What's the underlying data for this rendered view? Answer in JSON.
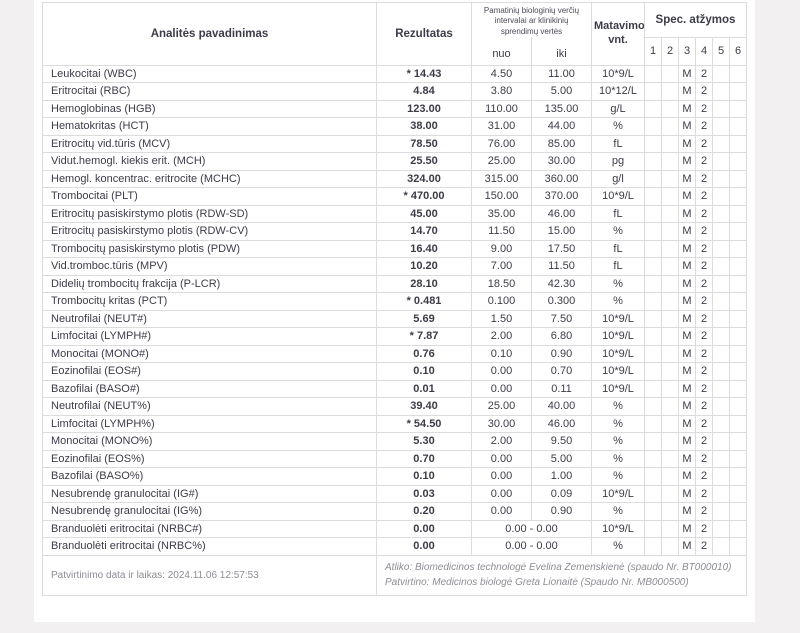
{
  "colors": {
    "page_background": "#f2f0f0",
    "panel_background": "#ffffff",
    "table_border": "#dcdcdc",
    "text": "#3c3c49",
    "muted_text": "#8d8d94"
  },
  "table": {
    "headers": {
      "analyte": "Analitės pavadinimas",
      "result": "Rezultatas",
      "reference": "Pamatinių biologinių verčių intervalai ar klinikinių sprendimų vertės",
      "from": "nuo",
      "to": "iki",
      "unit": "Matavimo vnt.",
      "spec": "Spec. atžymos",
      "spec_cols": [
        "1",
        "2",
        "3",
        "4",
        "5",
        "6"
      ]
    },
    "rows": [
      {
        "name": "Leukocitai (WBC)",
        "result": "* 14.43",
        "from": "4.50",
        "to": "11.00",
        "unit": "10*9/L",
        "spec": [
          "",
          "",
          "M",
          "2",
          "",
          ""
        ]
      },
      {
        "name": "Eritrocitai (RBC)",
        "result": "4.84",
        "from": "3.80",
        "to": "5.00",
        "unit": "10*12/L",
        "spec": [
          "",
          "",
          "M",
          "2",
          "",
          ""
        ]
      },
      {
        "name": "Hemoglobinas (HGB)",
        "result": "123.00",
        "from": "110.00",
        "to": "135.00",
        "unit": "g/L",
        "spec": [
          "",
          "",
          "M",
          "2",
          "",
          ""
        ]
      },
      {
        "name": "Hematokritas (HCT)",
        "result": "38.00",
        "from": "31.00",
        "to": "44.00",
        "unit": "%",
        "spec": [
          "",
          "",
          "M",
          "2",
          "",
          ""
        ]
      },
      {
        "name": "Eritrocitų vid.tūris (MCV)",
        "result": "78.50",
        "from": "76.00",
        "to": "85.00",
        "unit": "fL",
        "spec": [
          "",
          "",
          "M",
          "2",
          "",
          ""
        ]
      },
      {
        "name": "Vidut.hemogl. kiekis erit. (MCH)",
        "result": "25.50",
        "from": "25.00",
        "to": "30.00",
        "unit": "pg",
        "spec": [
          "",
          "",
          "M",
          "2",
          "",
          ""
        ]
      },
      {
        "name": "Hemogl. koncentrac. eritrocite (MCHC)",
        "result": "324.00",
        "from": "315.00",
        "to": "360.00",
        "unit": "g/l",
        "spec": [
          "",
          "",
          "M",
          "2",
          "",
          ""
        ]
      },
      {
        "name": "Trombocitai (PLT)",
        "result": "* 470.00",
        "from": "150.00",
        "to": "370.00",
        "unit": "10*9/L",
        "spec": [
          "",
          "",
          "M",
          "2",
          "",
          ""
        ]
      },
      {
        "name": "Eritrocitų pasiskirstymo plotis (RDW-SD)",
        "result": "45.00",
        "from": "35.00",
        "to": "46.00",
        "unit": "fL",
        "spec": [
          "",
          "",
          "M",
          "2",
          "",
          ""
        ]
      },
      {
        "name": "Eritrocitų pasiskirstymo plotis (RDW-CV)",
        "result": "14.70",
        "from": "11.50",
        "to": "15.00",
        "unit": "%",
        "spec": [
          "",
          "",
          "M",
          "2",
          "",
          ""
        ]
      },
      {
        "name": "Trombocitų pasiskirstymo plotis (PDW)",
        "result": "16.40",
        "from": "9.00",
        "to": "17.50",
        "unit": "fL",
        "spec": [
          "",
          "",
          "M",
          "2",
          "",
          ""
        ]
      },
      {
        "name": "Vid.tromboc.tūris (MPV)",
        "result": "10.20",
        "from": "7.00",
        "to": "11.50",
        "unit": "fL",
        "spec": [
          "",
          "",
          "M",
          "2",
          "",
          ""
        ]
      },
      {
        "name": "Didelių trombocitų frakcija (P-LCR)",
        "result": "28.10",
        "from": "18.50",
        "to": "42.30",
        "unit": "%",
        "spec": [
          "",
          "",
          "M",
          "2",
          "",
          ""
        ]
      },
      {
        "name": "Trombocitų kritas (PCT)",
        "result": "* 0.481",
        "from": "0.100",
        "to": "0.300",
        "unit": "%",
        "spec": [
          "",
          "",
          "M",
          "2",
          "",
          ""
        ]
      },
      {
        "name": "Neutrofilai (NEUT#)",
        "result": "5.69",
        "from": "1.50",
        "to": "7.50",
        "unit": "10*9/L",
        "spec": [
          "",
          "",
          "M",
          "2",
          "",
          ""
        ]
      },
      {
        "name": "Limfocitai (LYMPH#)",
        "result": "* 7.87",
        "from": "2.00",
        "to": "6.80",
        "unit": "10*9/L",
        "spec": [
          "",
          "",
          "M",
          "2",
          "",
          ""
        ]
      },
      {
        "name": "Monocitai (MONO#)",
        "result": "0.76",
        "from": "0.10",
        "to": "0.90",
        "unit": "10*9/L",
        "spec": [
          "",
          "",
          "M",
          "2",
          "",
          ""
        ]
      },
      {
        "name": "Eozinofilai (EOS#)",
        "result": "0.10",
        "from": "0.00",
        "to": "0.70",
        "unit": "10*9/L",
        "spec": [
          "",
          "",
          "M",
          "2",
          "",
          ""
        ]
      },
      {
        "name": "Bazofilai (BASO#)",
        "result": "0.01",
        "from": "0.00",
        "to": "0.11",
        "unit": "10*9/L",
        "spec": [
          "",
          "",
          "M",
          "2",
          "",
          ""
        ]
      },
      {
        "name": "Neutrofilai (NEUT%)",
        "result": "39.40",
        "from": "25.00",
        "to": "40.00",
        "unit": "%",
        "spec": [
          "",
          "",
          "M",
          "2",
          "",
          ""
        ]
      },
      {
        "name": "Limfocitai (LYMPH%)",
        "result": "* 54.50",
        "from": "30.00",
        "to": "46.00",
        "unit": "%",
        "spec": [
          "",
          "",
          "M",
          "2",
          "",
          ""
        ]
      },
      {
        "name": "Monocitai (MONO%)",
        "result": "5.30",
        "from": "2.00",
        "to": "9.50",
        "unit": "%",
        "spec": [
          "",
          "",
          "M",
          "2",
          "",
          ""
        ]
      },
      {
        "name": "Eozinofilai (EOS%)",
        "result": "0.70",
        "from": "0.00",
        "to": "5.00",
        "unit": "%",
        "spec": [
          "",
          "",
          "M",
          "2",
          "",
          ""
        ]
      },
      {
        "name": "Bazofilai (BASO%)",
        "result": "0.10",
        "from": "0.00",
        "to": "1.00",
        "unit": "%",
        "spec": [
          "",
          "",
          "M",
          "2",
          "",
          ""
        ]
      },
      {
        "name": "Nesubrendę granulocitai (IG#)",
        "result": "0.03",
        "from": "0.00",
        "to": "0.09",
        "unit": "10*9/L",
        "spec": [
          "",
          "",
          "M",
          "2",
          "",
          ""
        ]
      },
      {
        "name": "Nesubrendę granulocitai (IG%)",
        "result": "0.20",
        "from": "0.00",
        "to": "0.90",
        "unit": "%",
        "spec": [
          "",
          "",
          "M",
          "2",
          "",
          ""
        ]
      },
      {
        "name": "Branduolėti eritrocitai (NRBC#)",
        "result": "0.00",
        "range": "0.00 - 0.00",
        "unit": "10*9/L",
        "spec": [
          "",
          "",
          "M",
          "2",
          "",
          ""
        ]
      },
      {
        "name": "Branduolėti eritrocitai (NRBC%)",
        "result": "0.00",
        "range": "0.00 - 0.00",
        "unit": "%",
        "spec": [
          "",
          "",
          "M",
          "2",
          "",
          ""
        ]
      }
    ],
    "footer": {
      "confirmed": "Patvirtinimo data ir laikas: 2024.11.06 12:57:53",
      "performed_by": "Atliko: Biomedicinos technologė Evelina Zemenskienė (spaudo Nr. BT000010)",
      "approved_by": "Patvirtino: Medicinos biologė Greta Lionaitė (Spaudo Nr. MB000500)"
    }
  }
}
